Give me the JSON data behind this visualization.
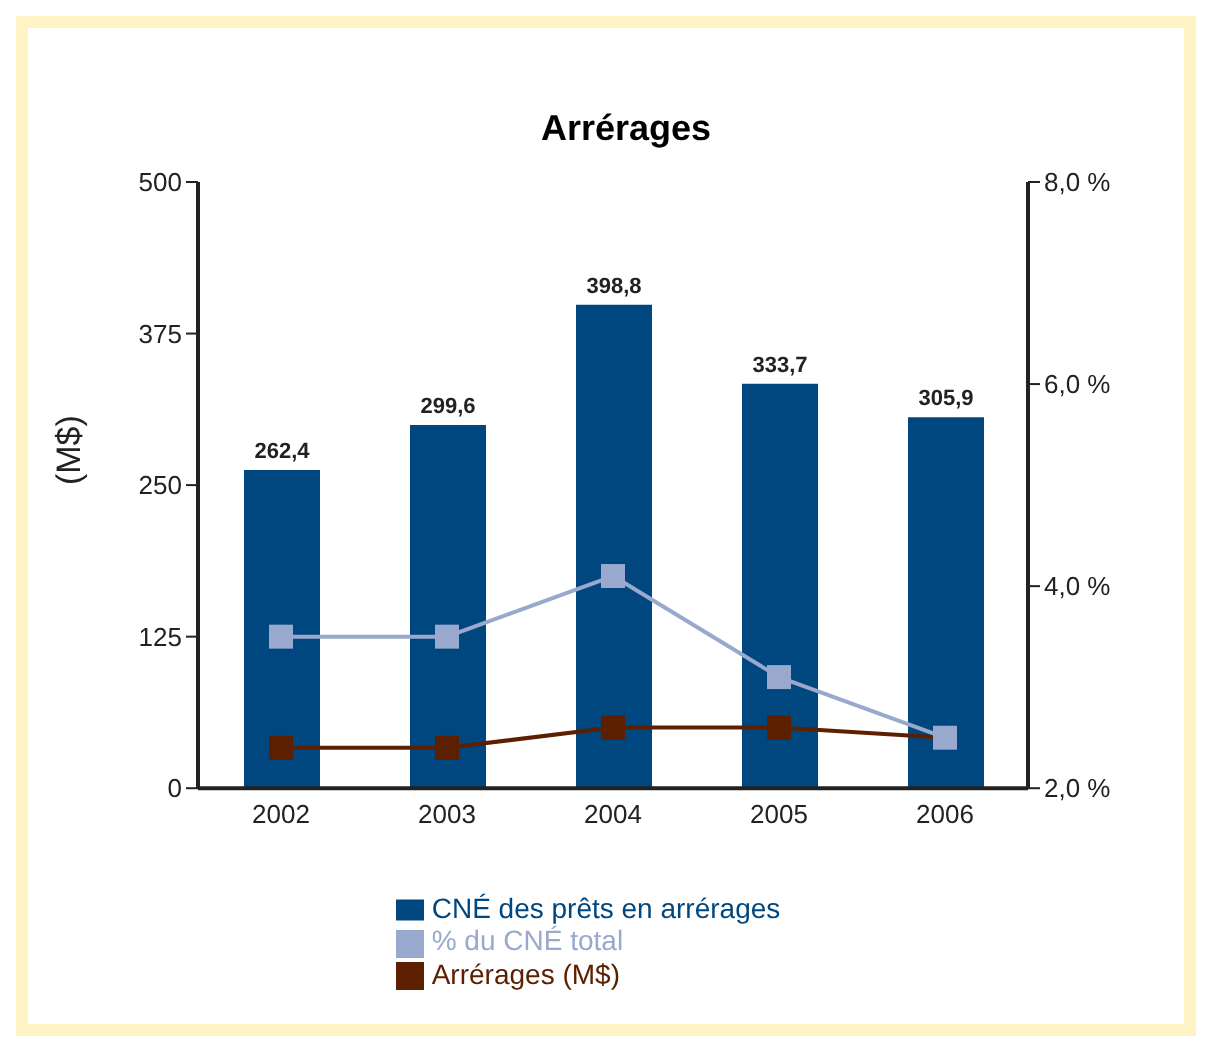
{
  "chart_data": {
    "type": "bar",
    "title": "Arrérages",
    "ylabel": "(M$)",
    "categories": [
      "2002",
      "2003",
      "2004",
      "2005",
      "2006"
    ],
    "series": [
      {
        "name": "CNÉ des prêts en arrérages",
        "color": "#00467f",
        "values": [
          262.4,
          299.6,
          398.8,
          333.7,
          305.9
        ],
        "value_labels": [
          "262,4",
          "299,6",
          "398,8",
          "333,7",
          "305,9"
        ]
      },
      {
        "name": "% du CNÉ total",
        "type": "line",
        "axis": "y2",
        "color": "#98a9cd",
        "values": [
          3.5,
          3.5,
          4.1,
          3.1,
          2.5
        ]
      },
      {
        "name": "Arrérages (M$)",
        "type": "line",
        "axis": "y2",
        "color": "#5c2000",
        "values": [
          2.4,
          2.4,
          2.6,
          2.6,
          2.5
        ]
      }
    ],
    "ylim": [
      0,
      500
    ],
    "yticks": [
      0,
      125,
      250,
      375,
      500
    ],
    "y2lim": [
      2,
      8
    ],
    "y2ticks": [
      {
        "value": 2,
        "label": "2,0 %"
      },
      {
        "value": 4,
        "label": "4,0 %"
      },
      {
        "value": 6,
        "label": "6,0 %"
      },
      {
        "value": 8,
        "label": "8,0 %"
      }
    ],
    "grid": false,
    "legend": "bottom",
    "marker": "square",
    "line_style": "solid"
  }
}
